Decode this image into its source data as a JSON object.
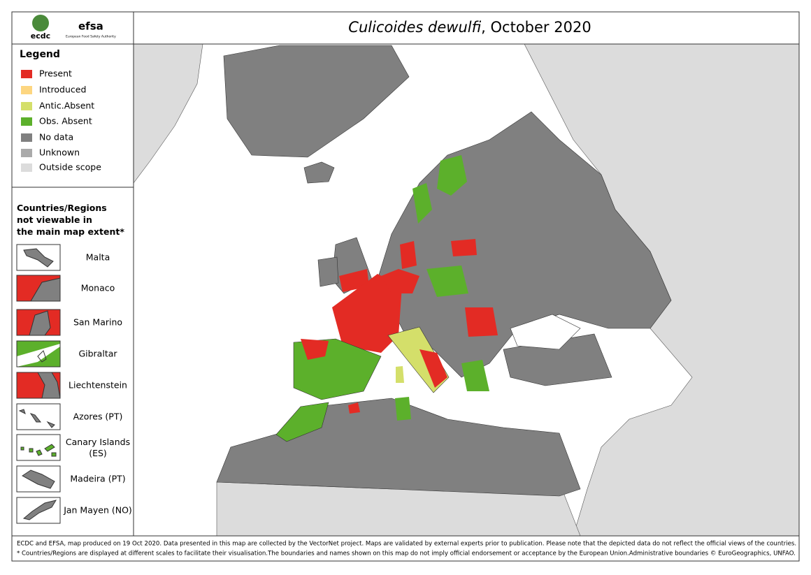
{
  "logos": {
    "ecdc": "ecdc",
    "efsa": "efsa",
    "efsa_subtitle": "European Food Safety Authority"
  },
  "title": {
    "species": "Culicoides dewulfi",
    "rest": ", October 2020"
  },
  "legend": {
    "title": "Legend",
    "items": [
      {
        "label": "Present",
        "color": "#e32b24"
      },
      {
        "label": "Introduced",
        "color": "#fdd680"
      },
      {
        "label": "Antic.Absent",
        "color": "#d4df6a"
      },
      {
        "label": "Obs. Absent",
        "color": "#5cb02b"
      },
      {
        "label": "No data",
        "color": "#808080"
      },
      {
        "label": "Unknown",
        "color": "#aaaaaa"
      },
      {
        "label": "Outside scope",
        "color": "#dcdcdc"
      }
    ]
  },
  "insets": {
    "title": "Countries/Regions not viewable in the main map extent*",
    "items": [
      "Malta",
      "Monaco",
      "San Marino",
      "Gibraltar",
      "Liechtenstein",
      "Azores (PT)",
      "Canary Islands (ES)",
      "Madeira (PT)",
      "Jan Mayen (NO)"
    ]
  },
  "footer": {
    "line1": "ECDC and EFSA, map produced on 19 Oct 2020. Data presented in this map are collected by the VectorNet project. Maps are validated by external experts prior to publication. Please note that the depicted data do not reflect the official views of the countries.",
    "line2": "* Countries/Regions are displayed at different scales to facilitate their visualisation.The boundaries and names shown on this map do not imply official endorsement or acceptance by the European Union.Administrative boundaries © EuroGeographics, UNFAO."
  }
}
